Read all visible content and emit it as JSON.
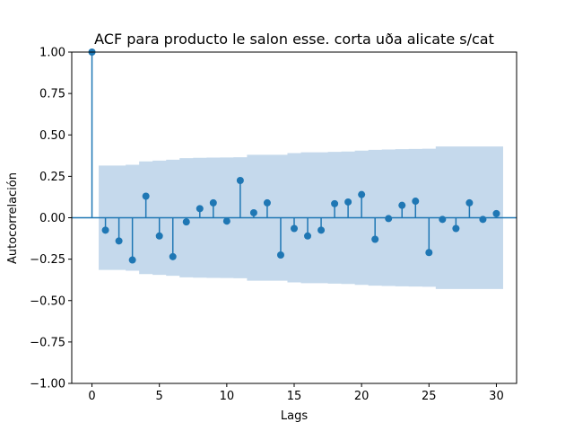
{
  "chart_data": {
    "type": "stem",
    "title": "ACF para producto le salon esse. corta uðа alicate s/cat",
    "xlabel": "Lags",
    "ylabel": "Autocorrelación",
    "xlim": [
      -1.5,
      31.5
    ],
    "ylim": [
      -1.0,
      1.0
    ],
    "xticks": [
      0,
      5,
      10,
      15,
      20,
      25,
      30
    ],
    "yticks": [
      -1.0,
      -0.75,
      -0.5,
      -0.25,
      0.0,
      0.25,
      0.5,
      0.75,
      1.0
    ],
    "ytick_labels": [
      "−1.00",
      "−0.75",
      "−0.50",
      "−0.25",
      "0.00",
      "0.25",
      "0.50",
      "0.75",
      "1.00"
    ],
    "lags": [
      0,
      1,
      2,
      3,
      4,
      5,
      6,
      7,
      8,
      9,
      10,
      11,
      12,
      13,
      14,
      15,
      16,
      17,
      18,
      19,
      20,
      21,
      22,
      23,
      24,
      25,
      26,
      27,
      28,
      29,
      30
    ],
    "acf": [
      1.0,
      -0.075,
      -0.14,
      -0.255,
      0.13,
      -0.11,
      -0.235,
      -0.025,
      0.055,
      0.09,
      -0.02,
      0.225,
      0.03,
      0.09,
      -0.225,
      -0.065,
      -0.11,
      -0.075,
      0.085,
      0.095,
      0.14,
      -0.13,
      -0.005,
      0.075,
      0.1,
      -0.21,
      -0.01,
      -0.065,
      0.09,
      -0.01,
      0.025
    ],
    "confint_upper": [
      0.315,
      0.315,
      0.32,
      0.34,
      0.345,
      0.35,
      0.36,
      0.362,
      0.363,
      0.364,
      0.365,
      0.38,
      0.38,
      0.38,
      0.39,
      0.395,
      0.395,
      0.398,
      0.4,
      0.405,
      0.41,
      0.412,
      0.414,
      0.415,
      0.417,
      0.43,
      0.43,
      0.43,
      0.43,
      0.43
    ],
    "colors": {
      "stem": "#1f77b4",
      "band": "#c5d9ec",
      "zero_line": "#1f77b4"
    }
  }
}
